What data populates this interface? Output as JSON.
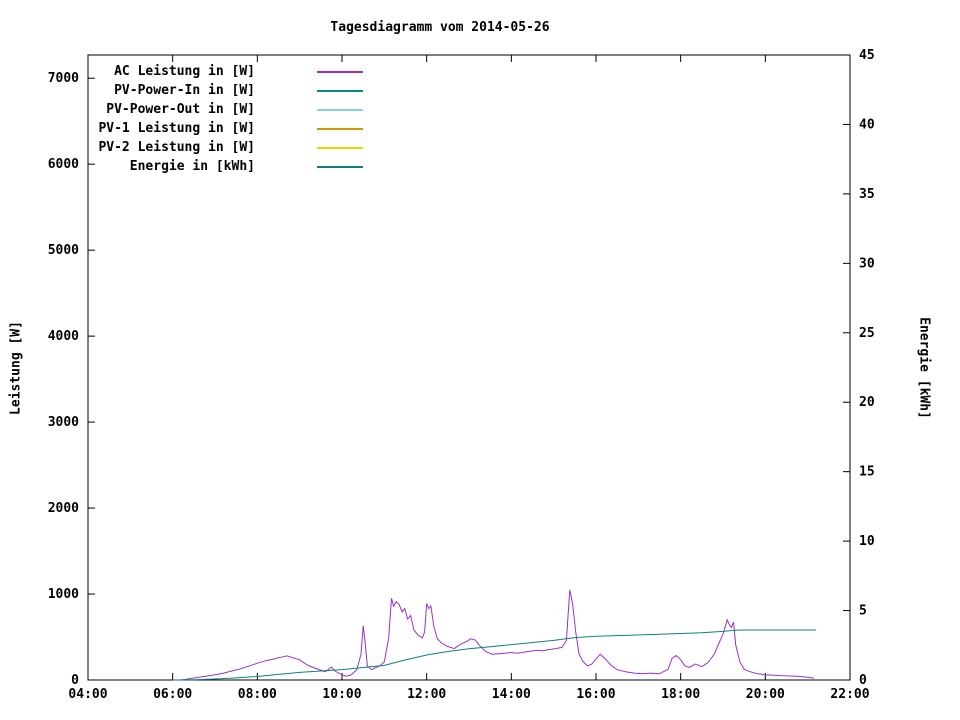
{
  "title": "Tagesdiagramm vom 2014-05-26",
  "chart_data": {
    "type": "line",
    "title": "Tagesdiagramm vom 2014-05-26",
    "x_axis": {
      "label": "",
      "ticks": [
        {
          "t": 4,
          "label": "04:00"
        },
        {
          "t": 6,
          "label": "06:00"
        },
        {
          "t": 8,
          "label": "08:00"
        },
        {
          "t": 10,
          "label": "10:00"
        },
        {
          "t": 12,
          "label": "12:00"
        },
        {
          "t": 14,
          "label": "14:00"
        },
        {
          "t": 16,
          "label": "16:00"
        },
        {
          "t": 18,
          "label": "18:00"
        },
        {
          "t": 20,
          "label": "20:00"
        },
        {
          "t": 22,
          "label": "22:00"
        }
      ]
    },
    "y_left": {
      "label": "Leistung [W]",
      "range": [
        0,
        7000
      ],
      "ticks": [
        0,
        1000,
        2000,
        3000,
        4000,
        5000,
        6000,
        7000
      ]
    },
    "y_right": {
      "label": "Energie [kWh]",
      "range": [
        0,
        45
      ],
      "ticks": [
        0,
        5,
        10,
        15,
        20,
        25,
        30,
        35,
        40,
        45
      ]
    },
    "legend_position": "top-left-inside",
    "grid": false,
    "series": [
      {
        "name": "AC Leistung in [W]",
        "color": "#9932cc",
        "axis": "left",
        "points": [
          [
            6.2,
            0
          ],
          [
            6.4,
            15
          ],
          [
            6.6,
            30
          ],
          [
            6.8,
            45
          ],
          [
            7.0,
            60
          ],
          [
            7.2,
            80
          ],
          [
            7.4,
            105
          ],
          [
            7.6,
            130
          ],
          [
            7.8,
            160
          ],
          [
            8.0,
            195
          ],
          [
            8.2,
            225
          ],
          [
            8.4,
            245
          ],
          [
            8.6,
            270
          ],
          [
            8.7,
            280
          ],
          [
            8.8,
            265
          ],
          [
            9.0,
            235
          ],
          [
            9.1,
            200
          ],
          [
            9.2,
            170
          ],
          [
            9.35,
            140
          ],
          [
            9.5,
            115
          ],
          [
            9.6,
            95
          ],
          [
            9.75,
            150
          ],
          [
            9.85,
            100
          ],
          [
            10.0,
            60
          ],
          [
            10.1,
            45
          ],
          [
            10.2,
            55
          ],
          [
            10.35,
            120
          ],
          [
            10.45,
            300
          ],
          [
            10.5,
            630
          ],
          [
            10.55,
            420
          ],
          [
            10.6,
            160
          ],
          [
            10.7,
            120
          ],
          [
            10.8,
            145
          ],
          [
            10.9,
            165
          ],
          [
            11.0,
            210
          ],
          [
            11.1,
            480
          ],
          [
            11.17,
            950
          ],
          [
            11.22,
            860
          ],
          [
            11.28,
            910
          ],
          [
            11.35,
            880
          ],
          [
            11.42,
            790
          ],
          [
            11.48,
            830
          ],
          [
            11.55,
            710
          ],
          [
            11.62,
            750
          ],
          [
            11.7,
            580
          ],
          [
            11.8,
            520
          ],
          [
            11.9,
            490
          ],
          [
            11.95,
            560
          ],
          [
            12.0,
            890
          ],
          [
            12.05,
            830
          ],
          [
            12.1,
            860
          ],
          [
            12.17,
            620
          ],
          [
            12.25,
            480
          ],
          [
            12.35,
            430
          ],
          [
            12.5,
            390
          ],
          [
            12.65,
            365
          ],
          [
            12.8,
            415
          ],
          [
            12.95,
            450
          ],
          [
            13.05,
            480
          ],
          [
            13.15,
            465
          ],
          [
            13.25,
            400
          ],
          [
            13.4,
            330
          ],
          [
            13.55,
            300
          ],
          [
            13.7,
            305
          ],
          [
            13.85,
            310
          ],
          [
            14.0,
            320
          ],
          [
            14.15,
            310
          ],
          [
            14.3,
            325
          ],
          [
            14.45,
            335
          ],
          [
            14.6,
            345
          ],
          [
            14.75,
            340
          ],
          [
            14.9,
            355
          ],
          [
            15.05,
            365
          ],
          [
            15.2,
            380
          ],
          [
            15.3,
            460
          ],
          [
            15.38,
            1050
          ],
          [
            15.45,
            880
          ],
          [
            15.52,
            560
          ],
          [
            15.6,
            300
          ],
          [
            15.7,
            210
          ],
          [
            15.8,
            165
          ],
          [
            15.9,
            185
          ],
          [
            16.0,
            245
          ],
          [
            16.1,
            300
          ],
          [
            16.2,
            255
          ],
          [
            16.35,
            175
          ],
          [
            16.5,
            120
          ],
          [
            16.7,
            95
          ],
          [
            16.9,
            80
          ],
          [
            17.1,
            72
          ],
          [
            17.3,
            80
          ],
          [
            17.5,
            72
          ],
          [
            17.7,
            125
          ],
          [
            17.8,
            255
          ],
          [
            17.9,
            285
          ],
          [
            18.0,
            235
          ],
          [
            18.1,
            165
          ],
          [
            18.2,
            145
          ],
          [
            18.35,
            185
          ],
          [
            18.5,
            155
          ],
          [
            18.65,
            205
          ],
          [
            18.8,
            305
          ],
          [
            18.9,
            425
          ],
          [
            19.0,
            530
          ],
          [
            19.1,
            700
          ],
          [
            19.15,
            645
          ],
          [
            19.2,
            610
          ],
          [
            19.25,
            675
          ],
          [
            19.3,
            410
          ],
          [
            19.4,
            210
          ],
          [
            19.5,
            125
          ],
          [
            19.65,
            95
          ],
          [
            19.8,
            75
          ],
          [
            20.0,
            62
          ],
          [
            20.2,
            56
          ],
          [
            20.4,
            50
          ],
          [
            20.6,
            46
          ],
          [
            20.8,
            42
          ],
          [
            21.0,
            32
          ],
          [
            21.15,
            22
          ]
        ]
      },
      {
        "name": "PV-Power-In in [W]",
        "color": "#008b8b",
        "axis": "left",
        "points": []
      },
      {
        "name": "PV-Power-Out in [W]",
        "color": "#87ceeb",
        "axis": "left",
        "points": []
      },
      {
        "name": "PV-1 Leistung in [W]",
        "color": "#cc9900",
        "axis": "left",
        "points": []
      },
      {
        "name": "PV-2 Leistung in [W]",
        "color": "#dddd00",
        "axis": "left",
        "points": []
      },
      {
        "name": "Energie in [kWh]",
        "color": "#0e8080",
        "axis": "right",
        "points": [
          [
            6.0,
            0
          ],
          [
            6.5,
            0.02
          ],
          [
            7.0,
            0.07
          ],
          [
            7.5,
            0.15
          ],
          [
            8.0,
            0.25
          ],
          [
            8.5,
            0.4
          ],
          [
            9.0,
            0.55
          ],
          [
            9.5,
            0.65
          ],
          [
            10.0,
            0.75
          ],
          [
            10.5,
            0.9
          ],
          [
            11.0,
            1.05
          ],
          [
            11.5,
            1.45
          ],
          [
            12.0,
            1.8
          ],
          [
            12.5,
            2.05
          ],
          [
            13.0,
            2.25
          ],
          [
            13.5,
            2.4
          ],
          [
            14.0,
            2.55
          ],
          [
            14.5,
            2.7
          ],
          [
            15.0,
            2.85
          ],
          [
            15.5,
            3.05
          ],
          [
            16.0,
            3.15
          ],
          [
            16.5,
            3.2
          ],
          [
            17.0,
            3.25
          ],
          [
            17.5,
            3.3
          ],
          [
            18.0,
            3.35
          ],
          [
            18.5,
            3.4
          ],
          [
            19.0,
            3.5
          ],
          [
            19.3,
            3.58
          ],
          [
            19.5,
            3.6
          ],
          [
            20.0,
            3.6
          ],
          [
            20.5,
            3.6
          ],
          [
            21.0,
            3.6
          ],
          [
            21.2,
            3.6
          ]
        ]
      }
    ]
  }
}
